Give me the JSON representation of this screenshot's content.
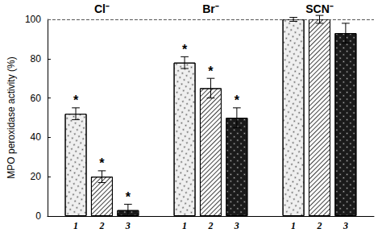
{
  "chart_data": {
    "type": "bar",
    "categories": [
      "Cl⁻",
      "Br⁻",
      "SCN⁻"
    ],
    "y_label": "MPO peroxidase activity (%)",
    "ylim": [
      0,
      100
    ],
    "yticks": [
      0,
      20,
      40,
      60,
      80,
      100
    ],
    "reference_line": 100,
    "series": [
      {
        "name": "1",
        "color": "#efefef",
        "values": [
          52,
          78,
          100
        ],
        "errors": [
          3,
          3,
          1
        ],
        "annotations": [
          "*",
          "*",
          null
        ]
      },
      {
        "name": "2",
        "color": "#ffffff",
        "values": [
          20,
          65,
          100
        ],
        "errors": [
          3,
          5,
          2
        ],
        "annotations": [
          "*",
          "*",
          null
        ]
      },
      {
        "name": "3",
        "color": "#1a1a1a",
        "values": [
          3,
          50,
          93
        ],
        "errors": [
          3,
          5,
          5
        ],
        "annotations": [
          "*",
          "*",
          null
        ]
      }
    ]
  }
}
